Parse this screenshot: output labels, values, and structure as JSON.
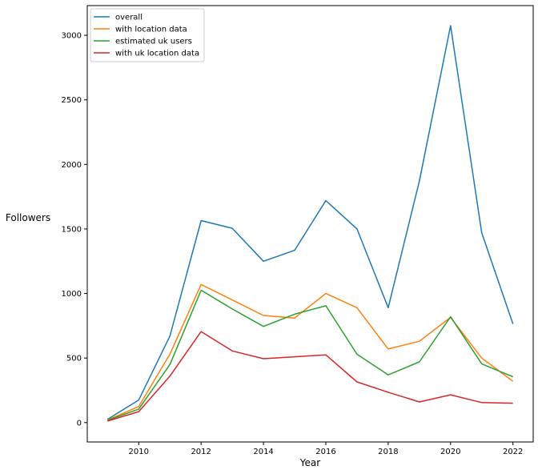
{
  "chart_data": {
    "type": "line",
    "title": "",
    "xlabel": "Year",
    "ylabel": "Followers",
    "x": [
      2009,
      2010,
      2011,
      2012,
      2013,
      2014,
      2015,
      2016,
      2017,
      2018,
      2019,
      2020,
      2021,
      2022
    ],
    "xlim": [
      2008.35,
      2022.65
    ],
    "ylim": [
      -150,
      3230
    ],
    "xticks": [
      2010,
      2012,
      2014,
      2016,
      2018,
      2020,
      2022
    ],
    "yticks": [
      0,
      500,
      1000,
      1500,
      2000,
      2500,
      3000
    ],
    "grid": false,
    "legend": "top-left",
    "series": [
      {
        "name": "overall",
        "color": "#1f77b4",
        "values": [
          25,
          175,
          670,
          1565,
          1505,
          1250,
          1335,
          1720,
          1500,
          890,
          1870,
          3075,
          1470,
          765
        ]
      },
      {
        "name": "with location data",
        "color": "#ff7f0e",
        "values": [
          20,
          125,
          530,
          1070,
          950,
          830,
          810,
          1000,
          890,
          570,
          630,
          815,
          500,
          320
        ]
      },
      {
        "name": "estimated uk users",
        "color": "#2ca02c",
        "values": [
          18,
          105,
          450,
          1025,
          880,
          745,
          840,
          905,
          530,
          370,
          470,
          820,
          455,
          355
        ]
      },
      {
        "name": "with uk location data",
        "color": "#d62728",
        "values": [
          12,
          85,
          360,
          705,
          555,
          495,
          510,
          525,
          315,
          235,
          160,
          215,
          155,
          150
        ]
      }
    ]
  }
}
